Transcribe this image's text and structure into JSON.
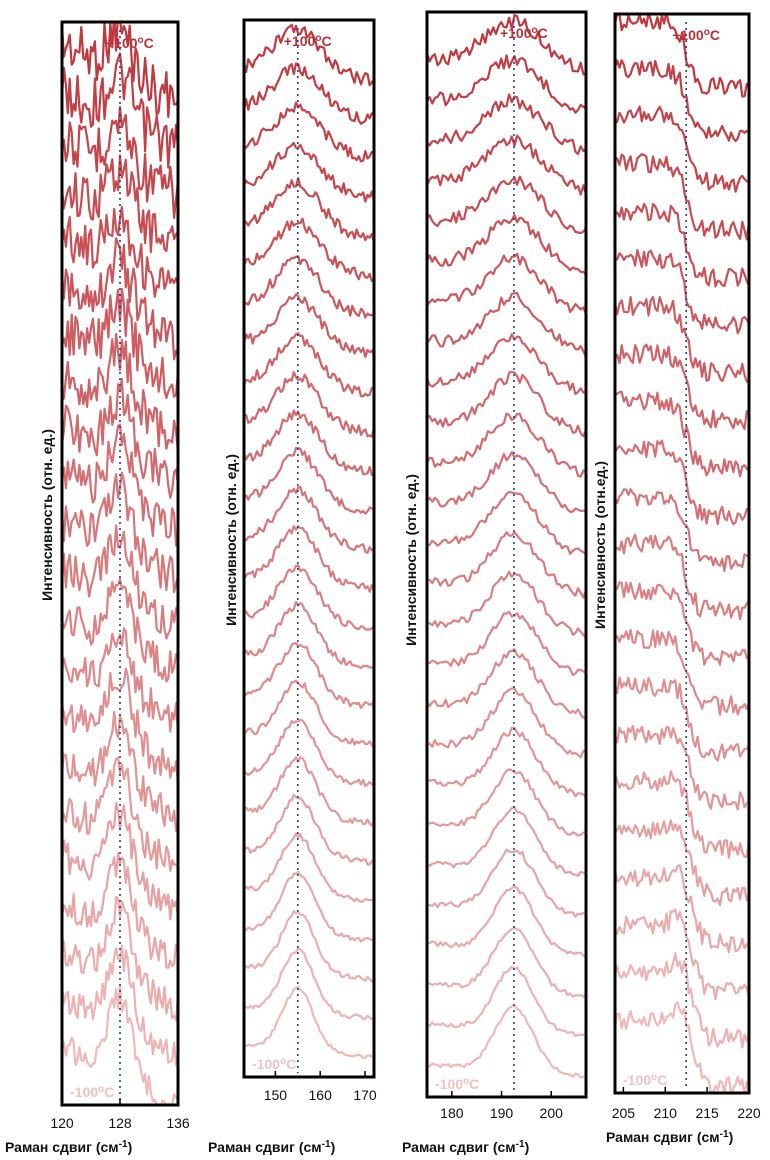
{
  "chart_data": [
    {
      "type": "line",
      "xlabel_text": "Раман сдвиг (см",
      "xlabel_sup": "-1",
      "xlabel_close": ")",
      "ylabel": "Интенсивность (отн. ед.)",
      "xticks": [
        120,
        128,
        136
      ],
      "xlim": [
        120,
        136
      ],
      "peak_marker": 128,
      "temp_top_text": "+100",
      "temp_top_sup": "o",
      "temp_top_unit": "C",
      "temp_bottom_text": "-100",
      "temp_bottom_sup": "o",
      "temp_bottom_unit": "C",
      "n_series": 22,
      "color_top": "#c0393f",
      "color_bottom": "#f0b8b8"
    },
    {
      "type": "line",
      "xlabel_text": "Раман сдвиг (см",
      "xlabel_sup": "-1",
      "xlabel_close": ")",
      "ylabel": "Интенсивность (отн. ед.)",
      "xticks": [
        150,
        160,
        170
      ],
      "xlim": [
        143,
        172
      ],
      "peak_marker": 155,
      "temp_top_text": "+100",
      "temp_top_sup": "o",
      "temp_top_unit": "C",
      "temp_bottom_text": "-100",
      "temp_bottom_sup": "o",
      "temp_bottom_unit": "C",
      "n_series": 26,
      "color_top": "#c0393f",
      "color_bottom": "#f0b8b8"
    },
    {
      "type": "line",
      "xlabel_text": "Раман сдвиг (см",
      "xlabel_sup": "-1",
      "xlabel_close": ")",
      "ylabel": "Интенсивность (отн. ед.)",
      "xticks": [
        180,
        190,
        200
      ],
      "xlim": [
        175,
        207
      ],
      "peak_marker": 192.5,
      "temp_top_text": "+100",
      "temp_top_sup": "o",
      "temp_top_unit": "C",
      "temp_bottom_text": "-100",
      "temp_bottom_sup": "o",
      "temp_bottom_unit": "C",
      "n_series": 26,
      "color_top": "#c0393f",
      "color_bottom": "#f0b8b8"
    },
    {
      "type": "line",
      "xlabel_text": "Раман сдвиг (см",
      "xlabel_sup": "-1",
      "xlabel_close": ")",
      "ylabel": "Интенсивность (отн.ед.)",
      "xticks": [
        205,
        210,
        215,
        220
      ],
      "xlim": [
        204,
        220
      ],
      "peak_marker": 212.5,
      "temp_top_text": "+100",
      "temp_top_sup": "o",
      "temp_top_unit": "C",
      "temp_bottom_text": "-100",
      "temp_bottom_sup": "o",
      "temp_bottom_unit": "C",
      "n_series": 22,
      "color_top": "#c0393f",
      "color_bottom": "#f0b8b8"
    }
  ]
}
